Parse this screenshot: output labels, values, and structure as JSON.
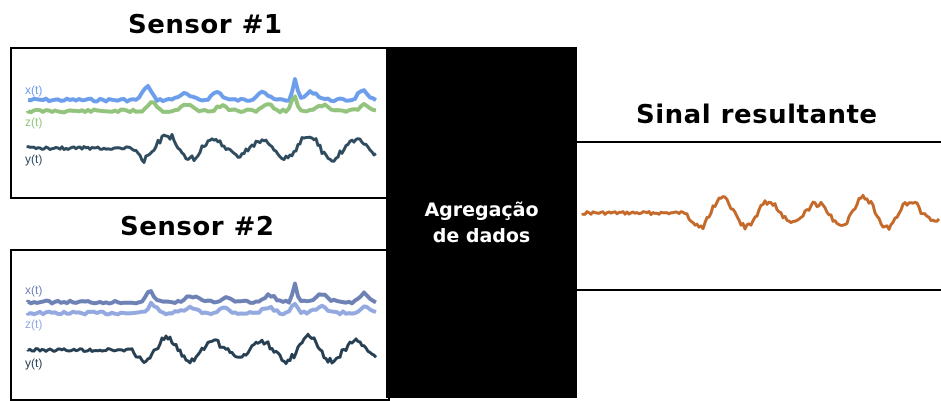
{
  "sensor1": {
    "title": "Sensor #1",
    "labels": {
      "x": "x(t)",
      "z": "z(t)",
      "y": "y(t)"
    },
    "colors": {
      "x": "#6d9eeb",
      "z": "#93c47d",
      "y": "#2f4b5e"
    }
  },
  "sensor2": {
    "title": "Sensor #2",
    "labels": {
      "x": "x(t)",
      "z": "z(t)",
      "y": "y(t)"
    },
    "colors": {
      "x": "#6f82b5",
      "z": "#93a9e0",
      "y": "#273f52"
    }
  },
  "aggregation": {
    "line1": "Agregação",
    "line2": "de dados"
  },
  "result": {
    "title": "Sinal resultante",
    "color": "#c4692a"
  }
}
